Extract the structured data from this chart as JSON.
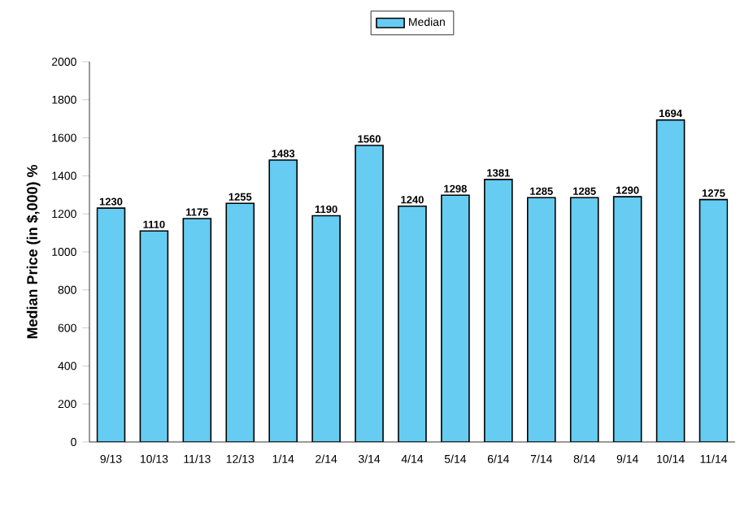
{
  "chart_data": {
    "type": "bar",
    "ylabel": "Median Price (in $,000) %",
    "categories": [
      "9/13",
      "10/13",
      "11/13",
      "12/13",
      "1/14",
      "2/14",
      "3/14",
      "4/14",
      "5/14",
      "6/14",
      "7/14",
      "8/14",
      "9/14",
      "10/14",
      "11/14"
    ],
    "series": [
      {
        "name": "Median",
        "color": "#66ccf2",
        "values": [
          1230,
          1110,
          1175,
          1255,
          1483,
          1190,
          1560,
          1240,
          1298,
          1381,
          1285,
          1285,
          1290,
          1694,
          1275
        ]
      }
    ],
    "ylim": [
      0,
      2000
    ],
    "yticks": [
      0,
      200,
      400,
      600,
      800,
      1000,
      1200,
      1400,
      1600,
      1800,
      2000
    ],
    "data_labels": true,
    "legend": "top",
    "grid": false
  }
}
